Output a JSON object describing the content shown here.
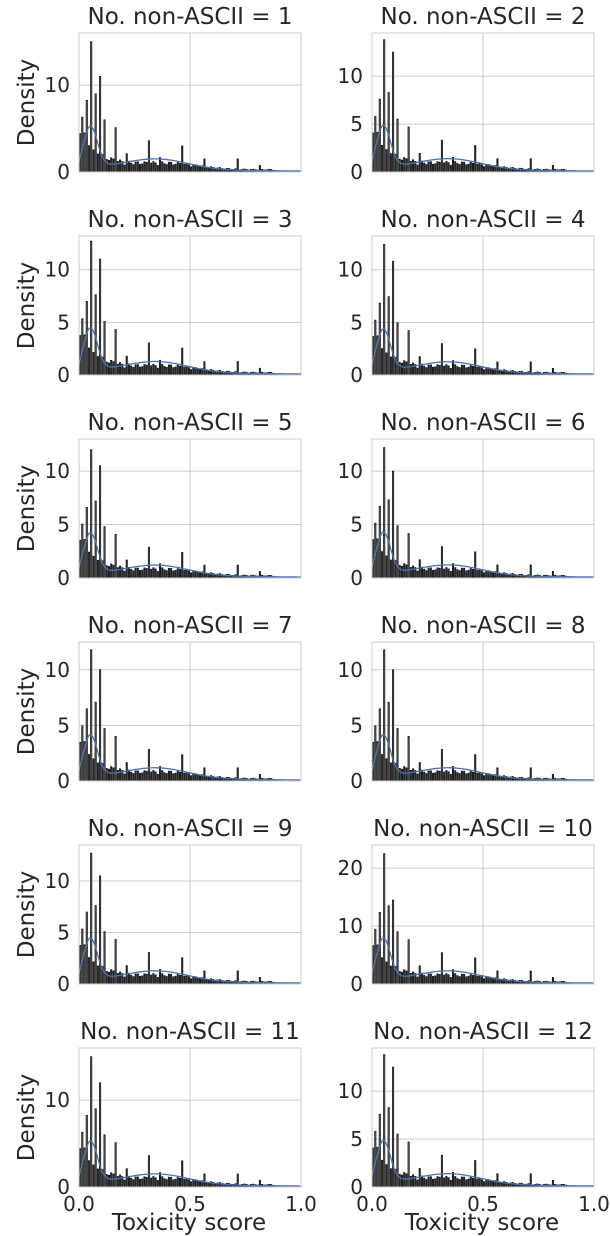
{
  "figure": {
    "ylabel": "Density",
    "xlabel": "Toxicity score",
    "x_ticks": [
      "0.0",
      "0.5",
      "1.0"
    ],
    "colors": {
      "bar_fill": "#3d4555",
      "bar_fill_tall": "#8c8c8c",
      "bar_edge": "#111111",
      "kde_line": "#4c72b0",
      "grid": "#cccccc",
      "text": "#262626"
    }
  },
  "chart_data": [
    {
      "type": "bar",
      "title": "No. non-ASCII = 1",
      "xlim": [
        0,
        1
      ],
      "ylim": [
        0,
        16
      ],
      "y_ticks": [
        0,
        10
      ],
      "peak": 15.0,
      "secondary_peak": 11.0
    },
    {
      "type": "bar",
      "title": "No. non-ASCII = 2",
      "xlim": [
        0,
        1
      ],
      "ylim": [
        0,
        14.5
      ],
      "y_ticks": [
        0,
        5,
        10
      ],
      "peak": 13.8,
      "secondary_peak": 12.5
    },
    {
      "type": "bar",
      "title": "No. non-ASCII = 3",
      "xlim": [
        0,
        1
      ],
      "ylim": [
        0,
        13.2
      ],
      "y_ticks": [
        0,
        5,
        10
      ],
      "peak": 12.7,
      "secondary_peak": 11.0
    },
    {
      "type": "bar",
      "title": "No. non-ASCII = 4",
      "xlim": [
        0,
        1
      ],
      "ylim": [
        0,
        13.2
      ],
      "y_ticks": [
        0,
        5,
        10
      ],
      "peak": 12.4,
      "secondary_peak": 10.8
    },
    {
      "type": "bar",
      "title": "No. non-ASCII = 5",
      "xlim": [
        0,
        1
      ],
      "ylim": [
        0,
        13
      ],
      "y_ticks": [
        0,
        5,
        10
      ],
      "peak": 12.0,
      "secondary_peak": 10.5
    },
    {
      "type": "bar",
      "title": "No. non-ASCII = 6",
      "xlim": [
        0,
        1
      ],
      "ylim": [
        0,
        13
      ],
      "y_ticks": [
        0,
        5,
        10
      ],
      "peak": 12.2,
      "secondary_peak": 10.0
    },
    {
      "type": "bar",
      "title": "No. non-ASCII = 7",
      "xlim": [
        0,
        1
      ],
      "ylim": [
        0,
        12.5
      ],
      "y_ticks": [
        0,
        5,
        10
      ],
      "peak": 11.8,
      "secondary_peak": 10.0
    },
    {
      "type": "bar",
      "title": "No. non-ASCII = 8",
      "xlim": [
        0,
        1
      ],
      "ylim": [
        0,
        12.5
      ],
      "y_ticks": [
        0,
        5,
        10
      ],
      "peak": 11.8,
      "secondary_peak": 10.0
    },
    {
      "type": "bar",
      "title": "No. non-ASCII = 9",
      "xlim": [
        0,
        1
      ],
      "ylim": [
        0,
        13.5
      ],
      "y_ticks": [
        0,
        5,
        10
      ],
      "peak": 12.7,
      "secondary_peak": 10.5
    },
    {
      "type": "bar",
      "title": "No. non-ASCII = 10",
      "xlim": [
        0,
        1
      ],
      "ylim": [
        0,
        24
      ],
      "y_ticks": [
        0,
        10,
        20
      ],
      "peak": 22.5,
      "secondary_peak": 14.5
    },
    {
      "type": "bar",
      "title": "No. non-ASCII = 11",
      "xlim": [
        0,
        1
      ],
      "ylim": [
        0,
        16
      ],
      "y_ticks": [
        0,
        10
      ],
      "peak": 15.0,
      "secondary_peak": 12.0
    },
    {
      "type": "bar",
      "title": "No. non-ASCII = 12",
      "xlim": [
        0,
        1
      ],
      "ylim": [
        0,
        14.5
      ],
      "y_ticks": [
        0,
        5,
        10
      ],
      "peak": 13.8,
      "secondary_peak": 12.5
    }
  ]
}
